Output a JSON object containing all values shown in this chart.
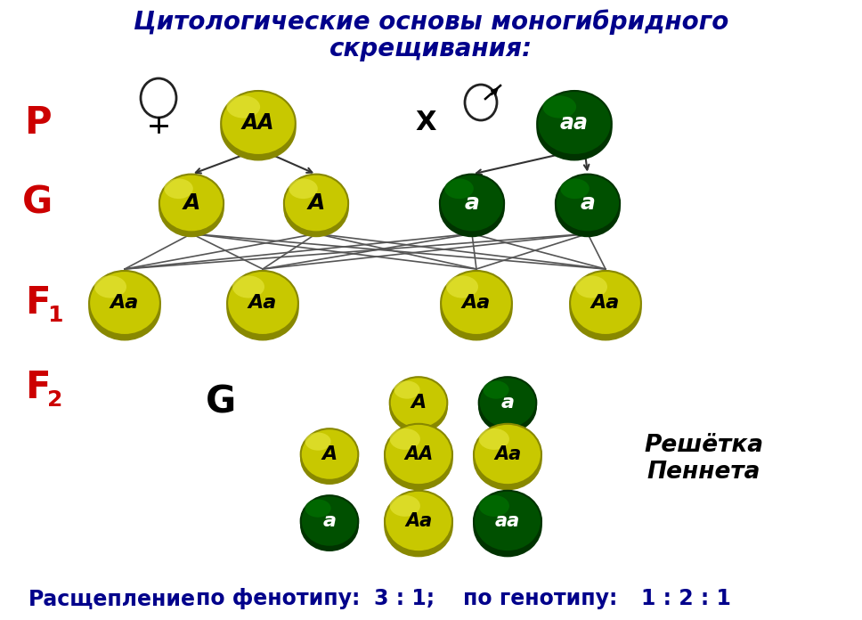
{
  "title_line1": "Цитологические основы моногибридного",
  "title_line2": "скрещивания:",
  "title_color": "#00008B",
  "bg_color": "#ffffff",
  "yellow_color": "#c8c800",
  "green_color": "#006400",
  "bottom_text_1": "Расщепление",
  "bottom_text_2": "по фенотипу:",
  "bottom_text_3": "3 : 1;",
  "bottom_text_4": "по генотипу:",
  "bottom_text_5": "1 : 2 : 1",
  "bottom_color": "#00008B"
}
